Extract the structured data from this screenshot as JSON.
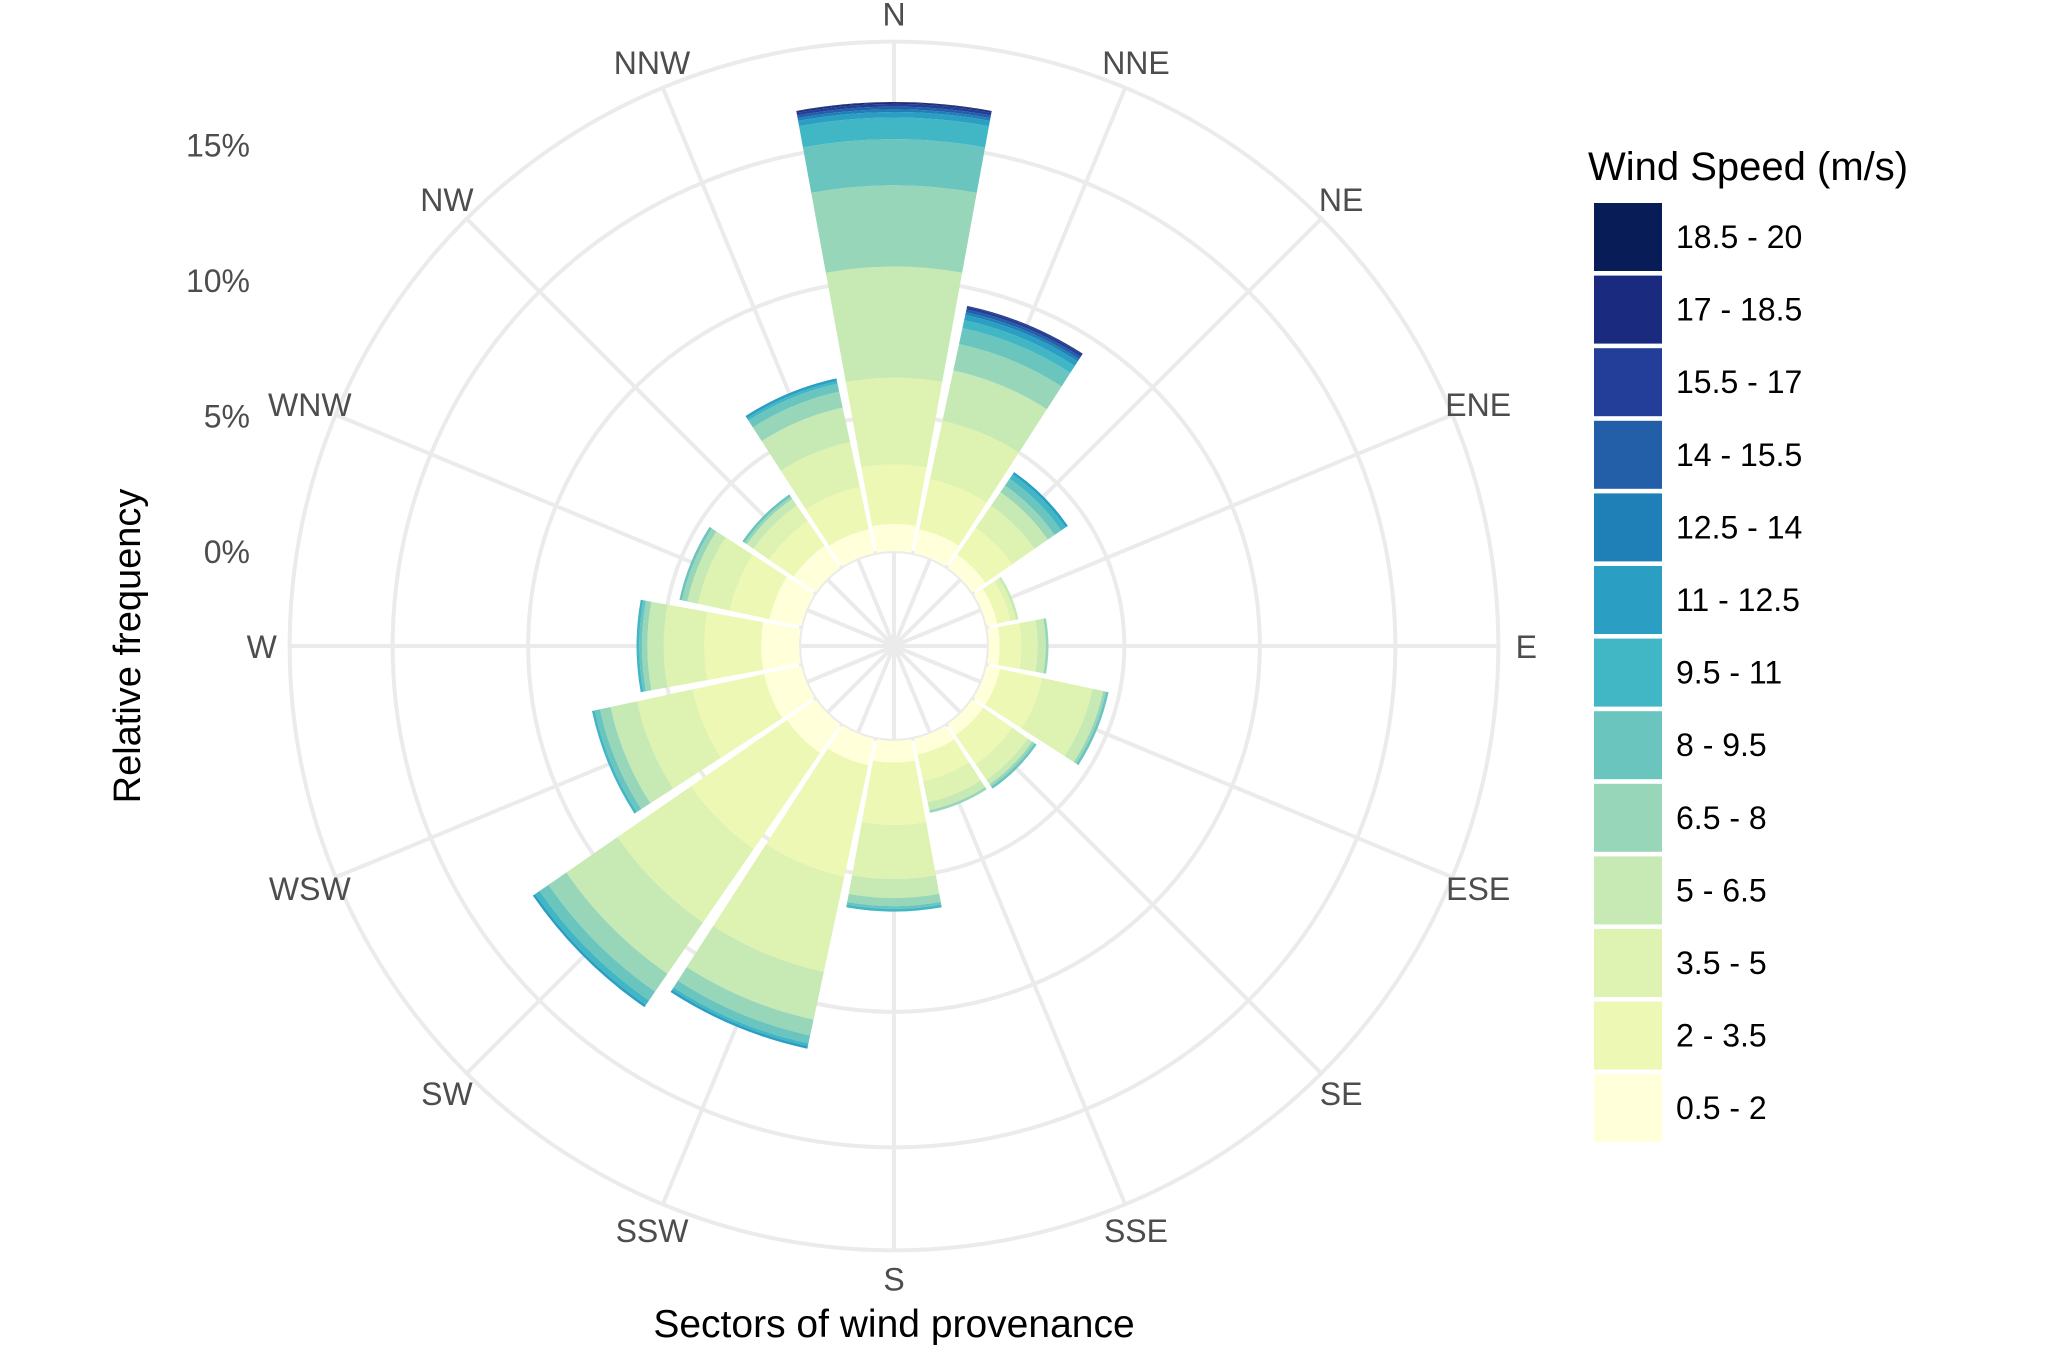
{
  "chart_data": {
    "type": "bar",
    "polar": true,
    "xlabel": "Sectors of wind provenance",
    "ylabel": "Relative frequency",
    "ylim": [
      -3.5,
      18.8
    ],
    "y_ticks": [
      0,
      5,
      10,
      15
    ],
    "y_tick_labels": [
      "0%",
      "5%",
      "10%",
      "15%"
    ],
    "grid": true,
    "legend": {
      "title": "Wind Speed (m/s)",
      "placement": "right",
      "entries": [
        {
          "label": "18.5 - 20",
          "color": "#081d58"
        },
        {
          "label": "17 - 18.5",
          "color": "#1a2b7f"
        },
        {
          "label": "15.5 - 17",
          "color": "#233e99"
        },
        {
          "label": "14 - 15.5",
          "color": "#235ea9"
        },
        {
          "label": "12.5 - 14",
          "color": "#1f80b8"
        },
        {
          "label": "11 - 12.5",
          "color": "#2a9ec3"
        },
        {
          "label": "9.5 - 11",
          "color": "#41b6c4"
        },
        {
          "label": "8 - 9.5",
          "color": "#6ac5be"
        },
        {
          "label": "6.5 - 8",
          "color": "#98d6b9"
        },
        {
          "label": "5 - 6.5",
          "color": "#c7e9b4"
        },
        {
          "label": "3.5 - 5",
          "color": "#def2b2"
        },
        {
          "label": "2 - 3.5",
          "color": "#eef8b5"
        },
        {
          "label": "0.5 - 2",
          "color": "#ffffd9"
        }
      ]
    },
    "categories": [
      "N",
      "NNE",
      "NE",
      "ENE",
      "E",
      "ESE",
      "SE",
      "SSE",
      "S",
      "SSW",
      "SW",
      "WSW",
      "W",
      "WNW",
      "NW",
      "NNW"
    ],
    "series": [
      {
        "name": "0.5 - 2",
        "values": [
          1.0,
          0.9,
          0.6,
          0.4,
          0.4,
          0.5,
          0.5,
          0.6,
          0.8,
          1.0,
          1.3,
          1.4,
          1.4,
          1.2,
          1.0,
          0.9
        ]
      },
      {
        "name": "2 - 3.5",
        "values": [
          2.2,
          1.9,
          1.2,
          0.5,
          0.8,
          1.6,
          1.3,
          1.0,
          2.3,
          4.2,
          4.3,
          2.7,
          2.1,
          1.5,
          1.1,
          1.6
        ]
      },
      {
        "name": "3.5 - 5",
        "values": [
          3.2,
          2.2,
          1.0,
          0.2,
          0.6,
          1.9,
          0.7,
          0.8,
          2.0,
          3.6,
          3.3,
          2.1,
          1.5,
          1.2,
          0.7,
          1.7
        ]
      },
      {
        "name": "5 - 6.5",
        "values": [
          4.1,
          1.9,
          0.6,
          0.1,
          0.3,
          0.4,
          0.2,
          0.3,
          0.7,
          1.8,
          2.3,
          1.0,
          0.6,
          0.4,
          0.3,
          1.3
        ]
      },
      {
        "name": "6.5 - 8",
        "values": [
          3.0,
          1.0,
          0.3,
          0.0,
          0.1,
          0.1,
          0.1,
          0.1,
          0.3,
          0.6,
          0.8,
          0.4,
          0.2,
          0.2,
          0.1,
          0.6
        ]
      },
      {
        "name": "8 - 9.5",
        "values": [
          1.7,
          0.6,
          0.3,
          0.0,
          0.0,
          0.1,
          0.1,
          0.0,
          0.1,
          0.3,
          0.4,
          0.2,
          0.1,
          0.1,
          0.1,
          0.3
        ]
      },
      {
        "name": "9.5 - 11",
        "values": [
          0.8,
          0.3,
          0.2,
          0.0,
          0.0,
          0.0,
          0.0,
          0.0,
          0.1,
          0.1,
          0.2,
          0.1,
          0.1,
          0.0,
          0.0,
          0.1
        ]
      },
      {
        "name": "11 - 12.5",
        "values": [
          0.2,
          0.2,
          0.1,
          0.0,
          0.0,
          0.0,
          0.0,
          0.0,
          0.0,
          0.1,
          0.1,
          0.0,
          0.0,
          0.0,
          0.0,
          0.1
        ]
      },
      {
        "name": "12.5 - 14",
        "values": [
          0.1,
          0.1,
          0.0,
          0.0,
          0.0,
          0.0,
          0.0,
          0.0,
          0.0,
          0.0,
          0.0,
          0.0,
          0.0,
          0.0,
          0.0,
          0.0
        ]
      },
      {
        "name": "14 - 15.5",
        "values": [
          0.1,
          0.1,
          0.0,
          0.0,
          0.0,
          0.0,
          0.0,
          0.0,
          0.0,
          0.0,
          0.0,
          0.0,
          0.0,
          0.0,
          0.0,
          0.0
        ]
      },
      {
        "name": "15.5 - 17",
        "values": [
          0.1,
          0.1,
          0.0,
          0.0,
          0.0,
          0.0,
          0.0,
          0.0,
          0.0,
          0.0,
          0.0,
          0.0,
          0.0,
          0.0,
          0.0,
          0.0
        ]
      },
      {
        "name": "17 - 18.5",
        "values": [
          0.05,
          0.03,
          0.0,
          0.0,
          0.0,
          0.0,
          0.0,
          0.0,
          0.0,
          0.0,
          0.0,
          0.0,
          0.0,
          0.0,
          0.0,
          0.0
        ]
      },
      {
        "name": "18.5 - 20",
        "values": [
          0.02,
          0.01,
          0.0,
          0.0,
          0.0,
          0.0,
          0.0,
          0.0,
          0.0,
          0.0,
          0.0,
          0.0,
          0.0,
          0.0,
          0.0,
          0.0
        ]
      }
    ]
  }
}
